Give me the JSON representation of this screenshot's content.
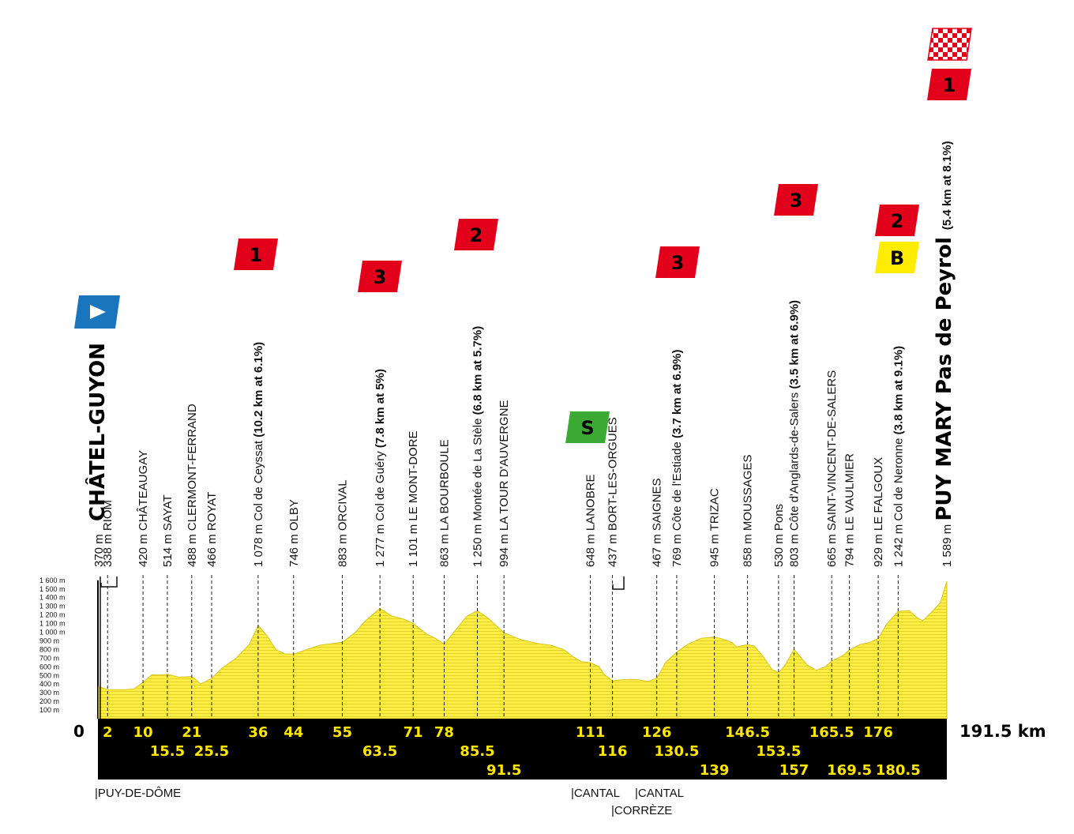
{
  "chart_data": {
    "type": "area",
    "x_unit": "km",
    "y_unit": "m",
    "xlim": [
      0,
      191.5
    ],
    "ylim": [
      0,
      1600
    ],
    "start_label": "0",
    "total_label": "191.5 km",
    "y_ticks": [
      "100 m",
      "200 m",
      "300 m",
      "400 m",
      "500 m",
      "600 m",
      "700 m",
      "800 m",
      "900 m",
      "1 000 m",
      "1 100 m",
      "1 200 m",
      "1 300 m",
      "1 400 m",
      "1 500 m",
      "1 600 m"
    ],
    "profile": [
      [
        0,
        370
      ],
      [
        2,
        338
      ],
      [
        4,
        335
      ],
      [
        6,
        335
      ],
      [
        8,
        345
      ],
      [
        10,
        420
      ],
      [
        12,
        510
      ],
      [
        14,
        505
      ],
      [
        15.5,
        514
      ],
      [
        18,
        480
      ],
      [
        21,
        488
      ],
      [
        22,
        450
      ],
      [
        23,
        400
      ],
      [
        25.5,
        466
      ],
      [
        28,
        590
      ],
      [
        31,
        700
      ],
      [
        34,
        860
      ],
      [
        36,
        1078
      ],
      [
        38,
        960
      ],
      [
        40,
        800
      ],
      [
        42,
        750
      ],
      [
        44,
        746
      ],
      [
        47,
        800
      ],
      [
        50,
        850
      ],
      [
        53,
        870
      ],
      [
        55,
        883
      ],
      [
        58,
        1000
      ],
      [
        60,
        1120
      ],
      [
        63.5,
        1277
      ],
      [
        66,
        1190
      ],
      [
        69,
        1150
      ],
      [
        71,
        1101
      ],
      [
        74,
        980
      ],
      [
        76,
        930
      ],
      [
        78,
        863
      ],
      [
        81,
        1050
      ],
      [
        83,
        1180
      ],
      [
        85.5,
        1250
      ],
      [
        88,
        1160
      ],
      [
        91.5,
        994
      ],
      [
        95,
        920
      ],
      [
        99,
        870
      ],
      [
        102,
        850
      ],
      [
        105,
        800
      ],
      [
        107,
        720
      ],
      [
        109,
        660
      ],
      [
        111,
        648
      ],
      [
        113,
        600
      ],
      [
        114,
        520
      ],
      [
        116,
        437
      ],
      [
        118,
        450
      ],
      [
        120,
        455
      ],
      [
        122,
        450
      ],
      [
        124,
        430
      ],
      [
        126,
        467
      ],
      [
        128,
        650
      ],
      [
        130.5,
        769
      ],
      [
        133,
        860
      ],
      [
        136,
        930
      ],
      [
        139,
        945
      ],
      [
        141,
        920
      ],
      [
        143,
        880
      ],
      [
        144,
        830
      ],
      [
        146.5,
        858
      ],
      [
        148,
        840
      ],
      [
        150,
        720
      ],
      [
        152,
        570
      ],
      [
        153.5,
        530
      ],
      [
        155,
        620
      ],
      [
        157,
        803
      ],
      [
        158,
        740
      ],
      [
        160,
        620
      ],
      [
        162,
        560
      ],
      [
        164,
        600
      ],
      [
        165.5,
        665
      ],
      [
        168,
        730
      ],
      [
        169.5,
        794
      ],
      [
        172,
        860
      ],
      [
        174,
        880
      ],
      [
        176,
        929
      ],
      [
        178,
        1100
      ],
      [
        180.5,
        1242
      ],
      [
        183,
        1250
      ],
      [
        184.5,
        1180
      ],
      [
        186,
        1130
      ],
      [
        188,
        1230
      ],
      [
        190,
        1340
      ],
      [
        191.5,
        1589
      ]
    ],
    "waypoints": [
      {
        "km": 0,
        "label": "370 m",
        "name": "CHÂTEL-GUYON",
        "kind": "start"
      },
      {
        "km": 2,
        "label": "338 m",
        "name": "RIOM"
      },
      {
        "km": 10,
        "label": "420 m",
        "name": "CHÂTEAUGAY"
      },
      {
        "km": 15.5,
        "label": "514 m",
        "name": "SAYAT"
      },
      {
        "km": 21,
        "label": "488 m",
        "name": "CLERMONT-FERRAND"
      },
      {
        "km": 25.5,
        "label": "466 m",
        "name": "ROYAT"
      },
      {
        "km": 36,
        "label": "1 078 m",
        "name": "Col de Ceyssat",
        "detail": "(10.2 km at 6.1%)",
        "cat": "1"
      },
      {
        "km": 44,
        "label": "746 m",
        "name": "OLBY"
      },
      {
        "km": 55,
        "label": "883 m",
        "name": "ORCIVAL"
      },
      {
        "km": 63.5,
        "label": "1 277 m",
        "name": "Col de Guéry",
        "detail": "(7.8 km at 5%)",
        "cat": "3"
      },
      {
        "km": 71,
        "label": "1 101 m",
        "name": "LE MONT-DORE"
      },
      {
        "km": 78,
        "label": "863 m",
        "name": "LA BOURBOULE"
      },
      {
        "km": 85.5,
        "label": "1 250 m",
        "name": "Montée de La Stèle",
        "detail": "(6.8 km at 5.7%)",
        "cat": "2"
      },
      {
        "km": 91.5,
        "label": "994 m",
        "name": "LA TOUR D'AUVERGNE"
      },
      {
        "km": 111,
        "label": "648 m",
        "name": "LANOBRE",
        "sprint": "S"
      },
      {
        "km": 116,
        "label": "437 m",
        "name": "BORT-LES-ORGUES"
      },
      {
        "km": 126,
        "label": "467 m",
        "name": "SAIGNES"
      },
      {
        "km": 130.5,
        "label": "769 m",
        "name": "Côte de l'Estiade",
        "detail": "(3.7 km at 6.9%)",
        "cat": "3"
      },
      {
        "km": 139,
        "label": "945 m",
        "name": "TRIZAC"
      },
      {
        "km": 146.5,
        "label": "858 m",
        "name": "MOUSSAGES"
      },
      {
        "km": 153.5,
        "label": "530 m",
        "name": "Pons"
      },
      {
        "km": 157,
        "label": "803 m",
        "name": "Côte d'Anglards-de-Salers",
        "detail": "(3.5 km at 6.9%)",
        "cat": "3"
      },
      {
        "km": 165.5,
        "label": "665 m",
        "name": "SAINT-VINCENT-DE-SALERS"
      },
      {
        "km": 169.5,
        "label": "794 m",
        "name": "LE VAULMIER"
      },
      {
        "km": 176,
        "label": "929 m",
        "name": "LE FALGOUX"
      },
      {
        "km": 180.5,
        "label": "1 242 m",
        "name": "Col de Neronne",
        "detail": "(3.8 km at 9.1%)",
        "cat": "2",
        "bonus": "B"
      },
      {
        "km": 191.5,
        "label": "1 589 m",
        "name": "PUY MARY Pas de Peyrol",
        "detail": "(5.4 km at 8.1%)",
        "cat": "1",
        "kind": "finish"
      }
    ],
    "km_marks_row1": [
      "2",
      "10",
      "21",
      "36",
      "44",
      "55",
      "71",
      "78",
      "111",
      "126",
      "146.5",
      "165.5",
      "176"
    ],
    "km_marks_row2": [
      "15.5",
      "25.5",
      "63.5",
      "85.5",
      "116",
      "130.5",
      "153.5"
    ],
    "km_marks_row3": [
      "91.5",
      "139",
      "157",
      "169.5",
      "180.5"
    ],
    "regions": [
      {
        "km": 0,
        "label": "PUY-DE-DÔME"
      },
      {
        "km": 111,
        "label": "CANTAL"
      },
      {
        "km": 116,
        "label": "CANTAL"
      },
      {
        "km": 116,
        "label": "CORRÈZE",
        "row": 2
      }
    ],
    "colors": {
      "profile": "#ffee44",
      "profile_stripe": "#e7d52e",
      "band": "#000000",
      "km_text": "#ffe600",
      "climb": "#e2001a",
      "start": "#1b75bc",
      "sprint": "#3aaa35",
      "bonus": "#ffed00"
    }
  }
}
